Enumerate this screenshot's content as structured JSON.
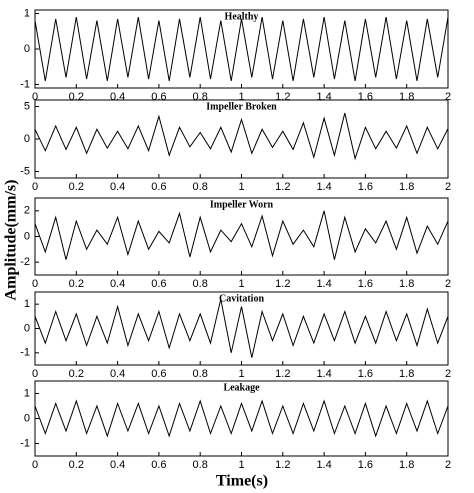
{
  "ylabel": "Amplitude(mm/s)",
  "xlabel": "Time(s)",
  "chart_data": [
    {
      "type": "line",
      "title": "Healthy",
      "color": "#000000",
      "x": [
        0,
        0.05,
        0.1,
        0.15,
        0.2,
        0.25,
        0.3,
        0.35,
        0.4,
        0.45,
        0.5,
        0.55,
        0.6,
        0.65,
        0.7,
        0.75,
        0.8,
        0.85,
        0.9,
        0.95,
        1,
        1.05,
        1.1,
        1.15,
        1.2,
        1.25,
        1.3,
        1.35,
        1.4,
        1.45,
        1.5,
        1.55,
        1.6,
        1.65,
        1.7,
        1.75,
        1.8,
        1.85,
        1.9,
        1.95,
        2
      ],
      "values": [
        0.8,
        -0.9,
        0.85,
        -0.8,
        0.9,
        -0.85,
        0.8,
        -0.9,
        0.85,
        -0.8,
        0.9,
        -0.85,
        0.8,
        -0.9,
        0.85,
        -0.8,
        0.9,
        -0.85,
        0.8,
        -0.9,
        0.85,
        -0.8,
        0.9,
        -0.85,
        0.8,
        -0.9,
        0.85,
        -0.8,
        0.9,
        -0.85,
        0.8,
        -0.9,
        0.85,
        -0.8,
        0.9,
        -0.85,
        0.8,
        -0.9,
        0.85,
        -0.8,
        0.9
      ],
      "xlim": [
        0,
        2
      ],
      "xticks": [
        0,
        0.2,
        0.4,
        0.6,
        0.8,
        1,
        1.2,
        1.4,
        1.6,
        1.8,
        2
      ],
      "ylim": [
        -1.1,
        1.1
      ],
      "yticks": [
        -1,
        0,
        1
      ]
    },
    {
      "type": "line",
      "title": "Impeller Broken",
      "color": "#000000",
      "x": [
        0,
        0.05,
        0.1,
        0.15,
        0.2,
        0.25,
        0.3,
        0.35,
        0.4,
        0.45,
        0.5,
        0.55,
        0.6,
        0.65,
        0.7,
        0.75,
        0.8,
        0.85,
        0.9,
        0.95,
        1,
        1.05,
        1.1,
        1.15,
        1.2,
        1.25,
        1.3,
        1.35,
        1.4,
        1.45,
        1.5,
        1.55,
        1.6,
        1.65,
        1.7,
        1.75,
        1.8,
        1.85,
        1.9,
        1.95,
        2
      ],
      "values": [
        1.5,
        -1.8,
        2,
        -1.6,
        1.8,
        -2.2,
        1.5,
        -1.4,
        1.2,
        -1.5,
        2,
        -1.8,
        3.5,
        -2.5,
        1.8,
        -1.2,
        1,
        -1.5,
        1.8,
        -2,
        3,
        -2.2,
        1.5,
        -1.3,
        1.2,
        -1.6,
        2.5,
        -2.8,
        3.2,
        -2.5,
        4,
        -3,
        1.8,
        -1.5,
        1.2,
        -1.4,
        2,
        -2.2,
        1.8,
        -1.5,
        1.6
      ],
      "xlim": [
        0,
        2
      ],
      "xticks": [
        0,
        0.2,
        0.4,
        0.6,
        0.8,
        1,
        1.2,
        1.4,
        1.6,
        1.8,
        2
      ],
      "ylim": [
        -6,
        6
      ],
      "yticks": [
        -5,
        0,
        5
      ]
    },
    {
      "type": "line",
      "title": "Impeller Worn",
      "color": "#000000",
      "x": [
        0,
        0.05,
        0.1,
        0.15,
        0.2,
        0.25,
        0.3,
        0.35,
        0.4,
        0.45,
        0.5,
        0.55,
        0.6,
        0.65,
        0.7,
        0.75,
        0.8,
        0.85,
        0.9,
        0.95,
        1,
        1.05,
        1.1,
        1.15,
        1.2,
        1.25,
        1.3,
        1.35,
        1.4,
        1.45,
        1.5,
        1.55,
        1.6,
        1.65,
        1.7,
        1.75,
        1.8,
        1.85,
        1.9,
        1.95,
        2
      ],
      "values": [
        1,
        -1.2,
        1.5,
        -1.8,
        1.2,
        -1,
        0.5,
        -0.6,
        1.5,
        -1.4,
        1.2,
        -1,
        0.4,
        -0.5,
        1.8,
        -1.6,
        1.5,
        -1.2,
        0.5,
        -0.4,
        1,
        -0.8,
        1.6,
        -1.5,
        1.2,
        -0.6,
        0.5,
        -0.8,
        2,
        -1.8,
        1.5,
        -1.2,
        0.6,
        -0.5,
        1.2,
        -1,
        1.5,
        -1.3,
        0.8,
        -0.6,
        1.2
      ],
      "xlim": [
        0,
        2
      ],
      "xticks": [
        0,
        0.2,
        0.4,
        0.6,
        0.8,
        1,
        1.2,
        1.4,
        1.6,
        1.8,
        2
      ],
      "ylim": [
        -3,
        3
      ],
      "yticks": [
        -2,
        0,
        2
      ]
    },
    {
      "type": "line",
      "title": "Cavitation",
      "color": "#000000",
      "x": [
        0,
        0.05,
        0.1,
        0.15,
        0.2,
        0.25,
        0.3,
        0.35,
        0.4,
        0.45,
        0.5,
        0.55,
        0.6,
        0.65,
        0.7,
        0.75,
        0.8,
        0.85,
        0.9,
        0.95,
        1,
        1.05,
        1.1,
        1.15,
        1.2,
        1.25,
        1.3,
        1.35,
        1.4,
        1.45,
        1.5,
        1.55,
        1.6,
        1.65,
        1.7,
        1.75,
        1.8,
        1.85,
        1.9,
        1.95,
        2
      ],
      "values": [
        0.5,
        -0.6,
        0.7,
        -0.5,
        0.6,
        -0.7,
        0.5,
        -0.6,
        0.9,
        -0.7,
        0.6,
        -0.5,
        0.7,
        -0.8,
        0.6,
        -0.5,
        0.6,
        -0.6,
        1.2,
        -1,
        0.9,
        -1.2,
        0.7,
        -0.5,
        0.6,
        -0.7,
        0.5,
        -0.6,
        0.6,
        -0.5,
        0.7,
        -0.6,
        0.5,
        -0.6,
        0.7,
        -0.5,
        0.6,
        -0.7,
        0.8,
        -0.6,
        0.5
      ],
      "xlim": [
        0,
        2
      ],
      "xticks": [
        0,
        0.2,
        0.4,
        0.6,
        0.8,
        1,
        1.2,
        1.4,
        1.6,
        1.8,
        2
      ],
      "ylim": [
        -1.5,
        1.5
      ],
      "yticks": [
        -1,
        0,
        1
      ]
    },
    {
      "type": "line",
      "title": "Leakage",
      "color": "#000000",
      "x": [
        0,
        0.05,
        0.1,
        0.15,
        0.2,
        0.25,
        0.3,
        0.35,
        0.4,
        0.45,
        0.5,
        0.55,
        0.6,
        0.65,
        0.7,
        0.75,
        0.8,
        0.85,
        0.9,
        0.95,
        1,
        1.05,
        1.1,
        1.15,
        1.2,
        1.25,
        1.3,
        1.35,
        1.4,
        1.45,
        1.5,
        1.55,
        1.6,
        1.65,
        1.7,
        1.75,
        1.8,
        1.85,
        1.9,
        1.95,
        2
      ],
      "values": [
        0.5,
        -0.6,
        0.6,
        -0.5,
        0.7,
        -0.6,
        0.5,
        -0.7,
        0.6,
        -0.5,
        0.6,
        -0.6,
        0.5,
        -0.7,
        0.6,
        -0.5,
        0.7,
        -0.6,
        0.5,
        -0.6,
        0.6,
        -0.5,
        0.7,
        -0.6,
        0.5,
        -0.6,
        0.6,
        -0.5,
        0.7,
        -0.6,
        0.5,
        -0.6,
        0.6,
        -0.7,
        0.5,
        -0.6,
        0.6,
        -0.5,
        0.7,
        -0.6,
        0.5
      ],
      "xlim": [
        0,
        2
      ],
      "xticks": [
        0,
        0.2,
        0.4,
        0.6,
        0.8,
        1,
        1.2,
        1.4,
        1.6,
        1.8,
        2
      ],
      "ylim": [
        -1.5,
        1.5
      ],
      "yticks": [
        -1,
        0,
        1
      ]
    }
  ]
}
